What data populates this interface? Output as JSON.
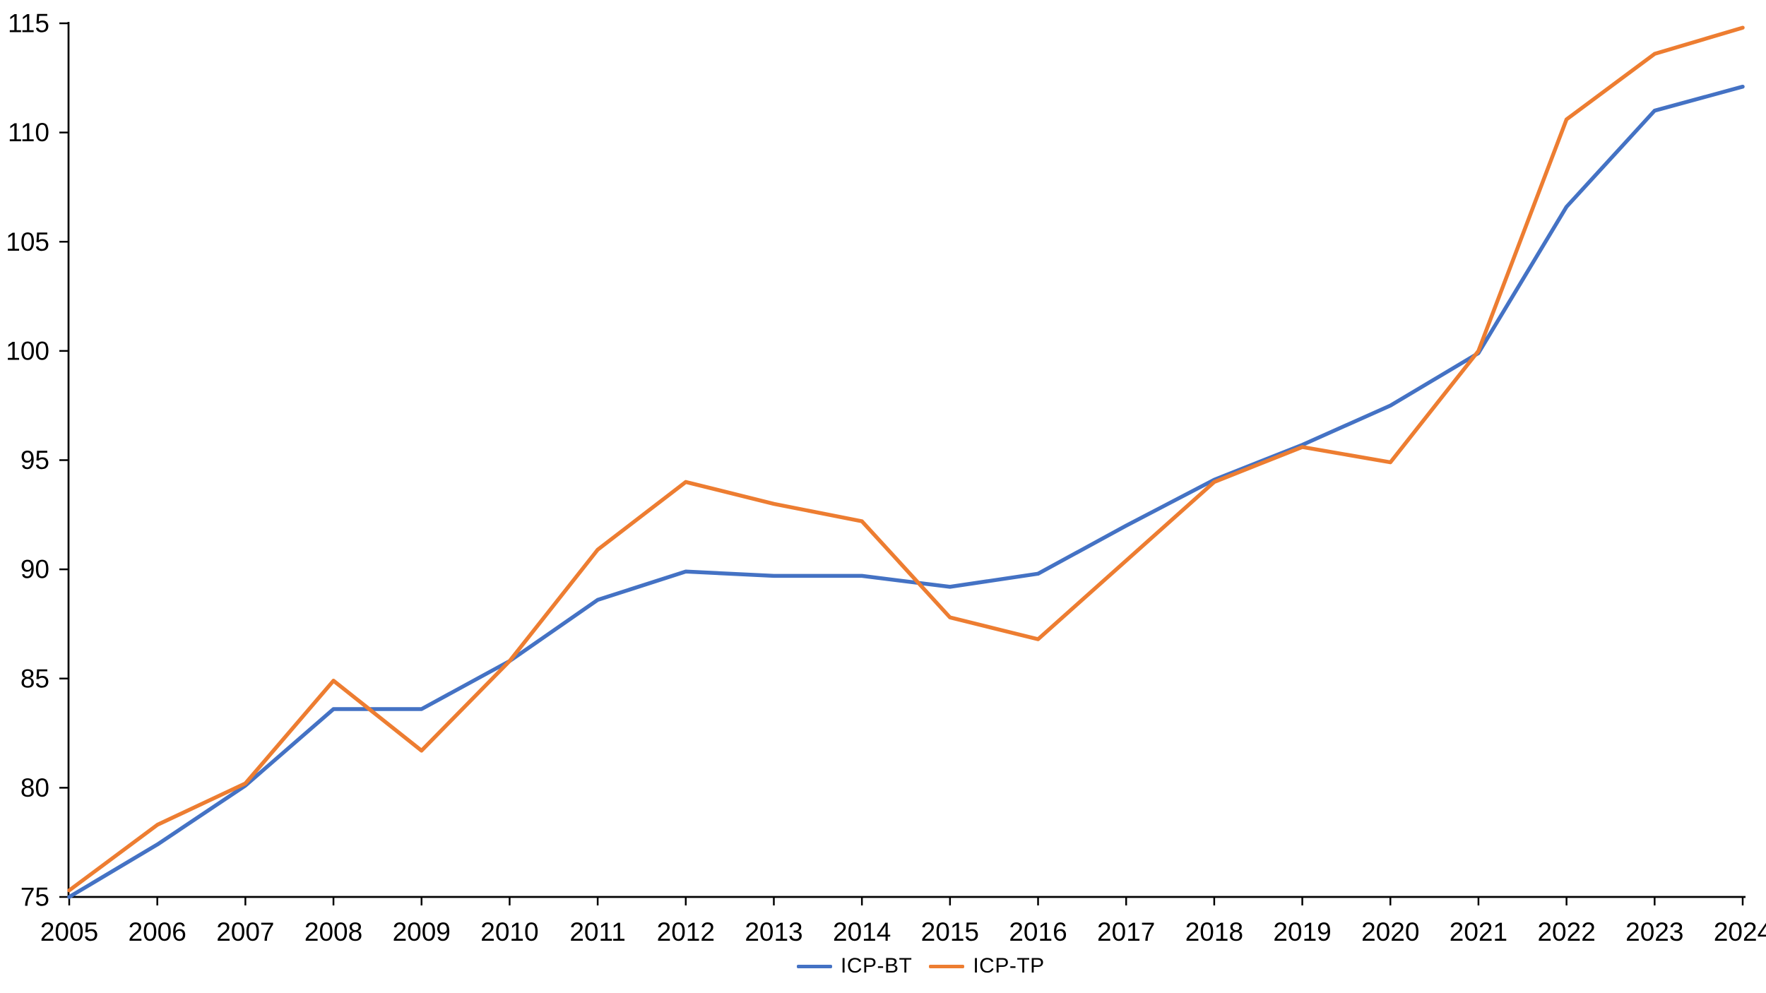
{
  "chart_data": {
    "type": "line",
    "title": "",
    "x": [
      2005,
      2006,
      2007,
      2008,
      2009,
      2010,
      2011,
      2012,
      2013,
      2014,
      2015,
      2016,
      2017,
      2018,
      2019,
      2020,
      2021,
      2022,
      2023,
      2024
    ],
    "series": [
      {
        "name": "ICP-BT",
        "color": "#4472C4",
        "values": [
          75.0,
          77.4,
          80.1,
          83.6,
          83.6,
          85.8,
          88.6,
          89.9,
          89.7,
          89.7,
          89.2,
          89.8,
          92.0,
          94.1,
          95.7,
          97.5,
          99.9,
          106.6,
          111.0,
          112.1
        ]
      },
      {
        "name": "ICP-TP",
        "color": "#ED7D31",
        "values": [
          75.3,
          78.3,
          80.2,
          84.9,
          81.7,
          85.8,
          90.9,
          94.0,
          93.0,
          92.2,
          87.8,
          86.8,
          90.4,
          94.0,
          95.6,
          94.9,
          100.0,
          110.6,
          113.6,
          114.8
        ]
      }
    ],
    "xlabel": "",
    "ylabel": "",
    "ylim": [
      75,
      115
    ],
    "y_ticks": [
      75,
      80,
      85,
      90,
      95,
      100,
      105,
      110,
      115
    ],
    "grid": false,
    "legend_position": "bottom-center",
    "axis_color": "#000000",
    "text_color": "#000000",
    "background": "#FFFFFF"
  }
}
